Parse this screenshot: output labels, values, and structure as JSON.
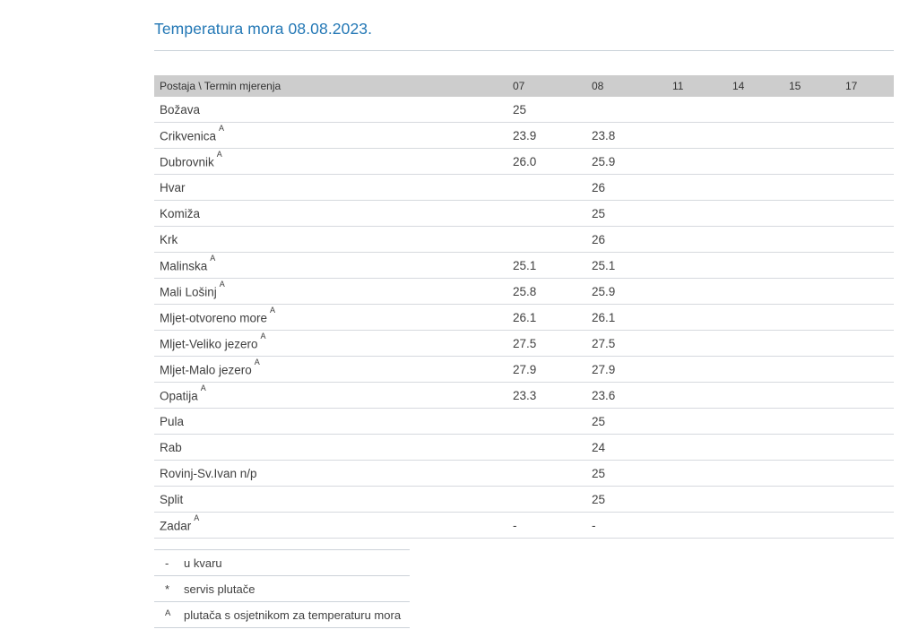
{
  "page": {
    "title": "Temperatura mora 08.08.2023."
  },
  "colors": {
    "title_blue": "#2277b5",
    "header_background": "#cdcdcd",
    "row_border": "#d6d9de",
    "body_text": "#404040"
  },
  "table": {
    "corner_label": "Postaja \\ Termin mjerenja",
    "time_columns": [
      "07",
      "08",
      "11",
      "14",
      "15",
      "17"
    ],
    "rows": [
      {
        "station": "Božava",
        "sup": "",
        "values": [
          "25",
          "",
          "",
          "",
          "",
          ""
        ]
      },
      {
        "station": "Crikvenica",
        "sup": "A",
        "values": [
          "23.9",
          "23.8",
          "",
          "",
          "",
          ""
        ]
      },
      {
        "station": "Dubrovnik",
        "sup": "A",
        "values": [
          "26.0",
          "25.9",
          "",
          "",
          "",
          ""
        ]
      },
      {
        "station": "Hvar",
        "sup": "",
        "values": [
          "",
          "26",
          "",
          "",
          "",
          ""
        ]
      },
      {
        "station": "Komiža",
        "sup": "",
        "values": [
          "",
          "25",
          "",
          "",
          "",
          ""
        ]
      },
      {
        "station": "Krk",
        "sup": "",
        "values": [
          "",
          "26",
          "",
          "",
          "",
          ""
        ]
      },
      {
        "station": "Malinska",
        "sup": "A",
        "values": [
          "25.1",
          "25.1",
          "",
          "",
          "",
          ""
        ]
      },
      {
        "station": "Mali Lošinj",
        "sup": "A",
        "values": [
          "25.8",
          "25.9",
          "",
          "",
          "",
          ""
        ]
      },
      {
        "station": "Mljet-otvoreno more",
        "sup": "A",
        "values": [
          "26.1",
          "26.1",
          "",
          "",
          "",
          ""
        ]
      },
      {
        "station": "Mljet-Veliko jezero",
        "sup": "A",
        "values": [
          "27.5",
          "27.5",
          "",
          "",
          "",
          ""
        ]
      },
      {
        "station": "Mljet-Malo jezero",
        "sup": "A",
        "values": [
          "27.9",
          "27.9",
          "",
          "",
          "",
          ""
        ]
      },
      {
        "station": "Opatija",
        "sup": "A",
        "values": [
          "23.3",
          "23.6",
          "",
          "",
          "",
          ""
        ]
      },
      {
        "station": "Pula",
        "sup": "",
        "values": [
          "",
          "25",
          "",
          "",
          "",
          ""
        ]
      },
      {
        "station": "Rab",
        "sup": "",
        "values": [
          "",
          "24",
          "",
          "",
          "",
          ""
        ]
      },
      {
        "station": "Rovinj-Sv.Ivan n/p",
        "sup": "",
        "values": [
          "",
          "25",
          "",
          "",
          "",
          ""
        ]
      },
      {
        "station": "Split",
        "sup": "",
        "values": [
          "",
          "25",
          "",
          "",
          "",
          ""
        ]
      },
      {
        "station": "Zadar",
        "sup": "A",
        "values": [
          "-",
          "-",
          "",
          "",
          "",
          ""
        ]
      }
    ]
  },
  "legend": {
    "items": [
      {
        "symbol": "-",
        "superscript": false,
        "label": "u kvaru"
      },
      {
        "symbol": "*",
        "superscript": false,
        "label": "servis plutače"
      },
      {
        "symbol": "A",
        "superscript": true,
        "label": "plutača s osjetnikom za temperaturu mora"
      }
    ]
  }
}
